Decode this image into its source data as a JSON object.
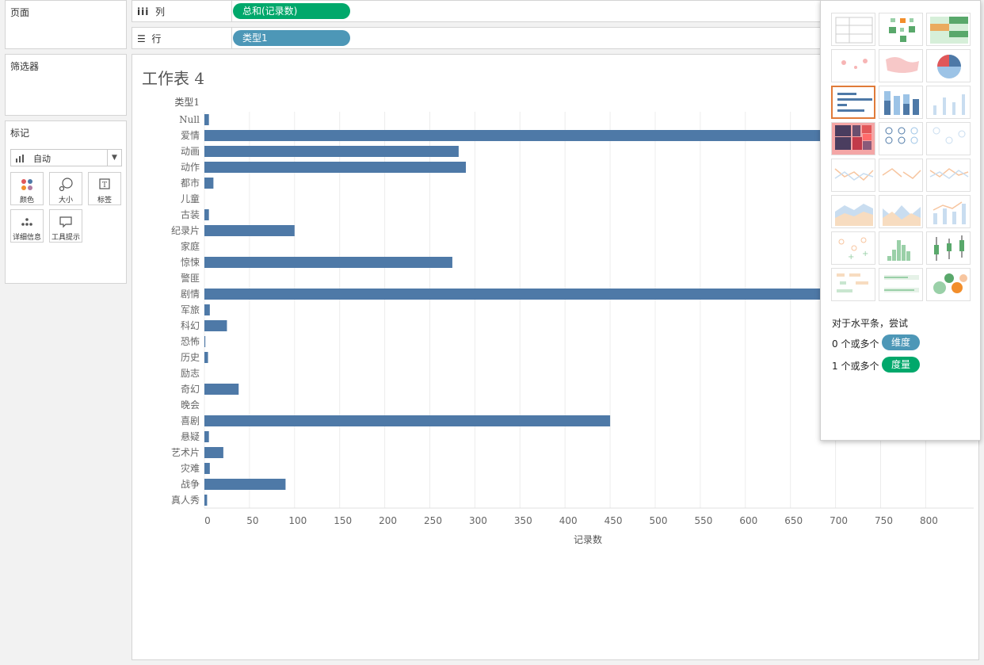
{
  "left_panels": {
    "pages_title": "页面",
    "filters_title": "筛选器",
    "marks_title": "标记",
    "mark_type": "自动",
    "buttons": [
      {
        "label": "颜色",
        "icon": "color-dots-icon"
      },
      {
        "label": "大小",
        "icon": "size-icon"
      },
      {
        "label": "标签",
        "icon": "label-icon"
      },
      {
        "label": "详细信息",
        "icon": "detail-icon"
      },
      {
        "label": "工具提示",
        "icon": "tooltip-icon"
      }
    ]
  },
  "shelves": {
    "columns_label": "列",
    "columns_pill": "总和(记录数)",
    "rows_label": "行",
    "rows_pill": "类型1"
  },
  "sheet": {
    "title": "工作表 4"
  },
  "showme": {
    "hint_title": "对于水平条，尝试",
    "dim_prefix": "0 个或多个",
    "dim_pill": "维度",
    "meas_prefix": "1 个或多个",
    "meas_pill": "度量"
  },
  "colors": {
    "bar": "#4e79a7",
    "pill_green": "#00a86b",
    "pill_blue": "#4d97b7",
    "selected_border": "#e07b39"
  },
  "chart_data": {
    "type": "bar",
    "orientation": "horizontal",
    "row_header": "类型1",
    "categories": [
      "Null",
      "爱情",
      "动画",
      "动作",
      "都市",
      "儿童",
      "古装",
      "纪录片",
      "家庭",
      "惊悚",
      "警匪",
      "剧情",
      "军旅",
      "科幻",
      "恐怖",
      "历史",
      "励志",
      "奇幻",
      "晚会",
      "喜剧",
      "悬疑",
      "艺术片",
      "灾难",
      "战争",
      "真人秀"
    ],
    "values": [
      5,
      690,
      282,
      290,
      10,
      0,
      5,
      100,
      0,
      275,
      0,
      690,
      6,
      25,
      1,
      4,
      0,
      38,
      0,
      450,
      5,
      21,
      6,
      90,
      3
    ],
    "xlabel": "记录数",
    "xlim": [
      0,
      850
    ],
    "xticks": [
      0,
      50,
      100,
      150,
      200,
      250,
      300,
      350,
      400,
      450,
      500,
      550,
      600,
      650,
      700,
      750,
      800
    ],
    "grid": true
  }
}
